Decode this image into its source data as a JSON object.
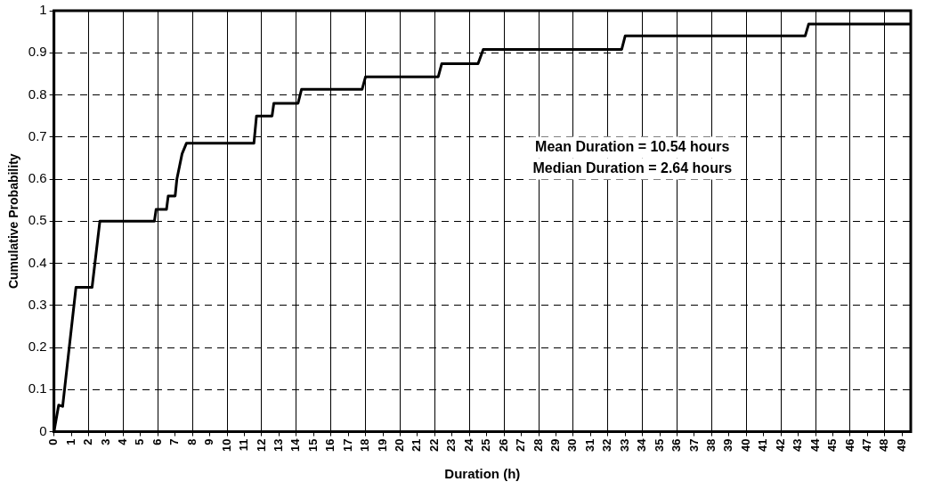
{
  "chart_data": {
    "type": "line",
    "xlabel": "Duration (h)",
    "ylabel": "Cumulative Probability",
    "annotations": [
      "Mean Duration = 10.54 hours",
      "Median Duration = 2.64 hours"
    ],
    "xlim": [
      0,
      49.5
    ],
    "xticks": [
      0,
      1,
      2,
      3,
      4,
      5,
      6,
      7,
      8,
      9,
      10,
      11,
      12,
      13,
      14,
      15,
      16,
      17,
      18,
      19,
      20,
      21,
      22,
      23,
      24,
      25,
      26,
      27,
      28,
      29,
      30,
      31,
      32,
      33,
      34,
      35,
      36,
      37,
      38,
      39,
      40,
      41,
      42,
      43,
      44,
      45,
      46,
      47,
      48,
      49
    ],
    "ylim": [
      0,
      1
    ],
    "yticks": [
      0,
      0.1,
      0.2,
      0.3,
      0.4,
      0.5,
      0.6,
      0.7,
      0.8,
      0.9,
      1
    ],
    "grid": true,
    "legend": false,
    "marker": "none",
    "line_style": "solid",
    "series": [
      {
        "color": "#000000",
        "x": [
          0,
          0.27,
          0.5,
          1.27,
          2.2,
          2.65,
          5.8,
          5.9,
          6.5,
          6.6,
          7.0,
          7.1,
          7.4,
          7.65,
          11.55,
          11.7,
          12.6,
          12.7,
          14.1,
          14.3,
          17.8,
          18.0,
          22.2,
          22.4,
          24.5,
          24.8,
          32.8,
          33.0,
          43.4,
          43.6,
          49.5
        ],
        "values": [
          0,
          0.063,
          0.06,
          0.343,
          0.343,
          0.5,
          0.5,
          0.528,
          0.528,
          0.56,
          0.56,
          0.6,
          0.66,
          0.685,
          0.685,
          0.75,
          0.75,
          0.78,
          0.78,
          0.813,
          0.813,
          0.843,
          0.843,
          0.874,
          0.874,
          0.908,
          0.908,
          0.94,
          0.94,
          0.968,
          0.968
        ]
      }
    ]
  }
}
